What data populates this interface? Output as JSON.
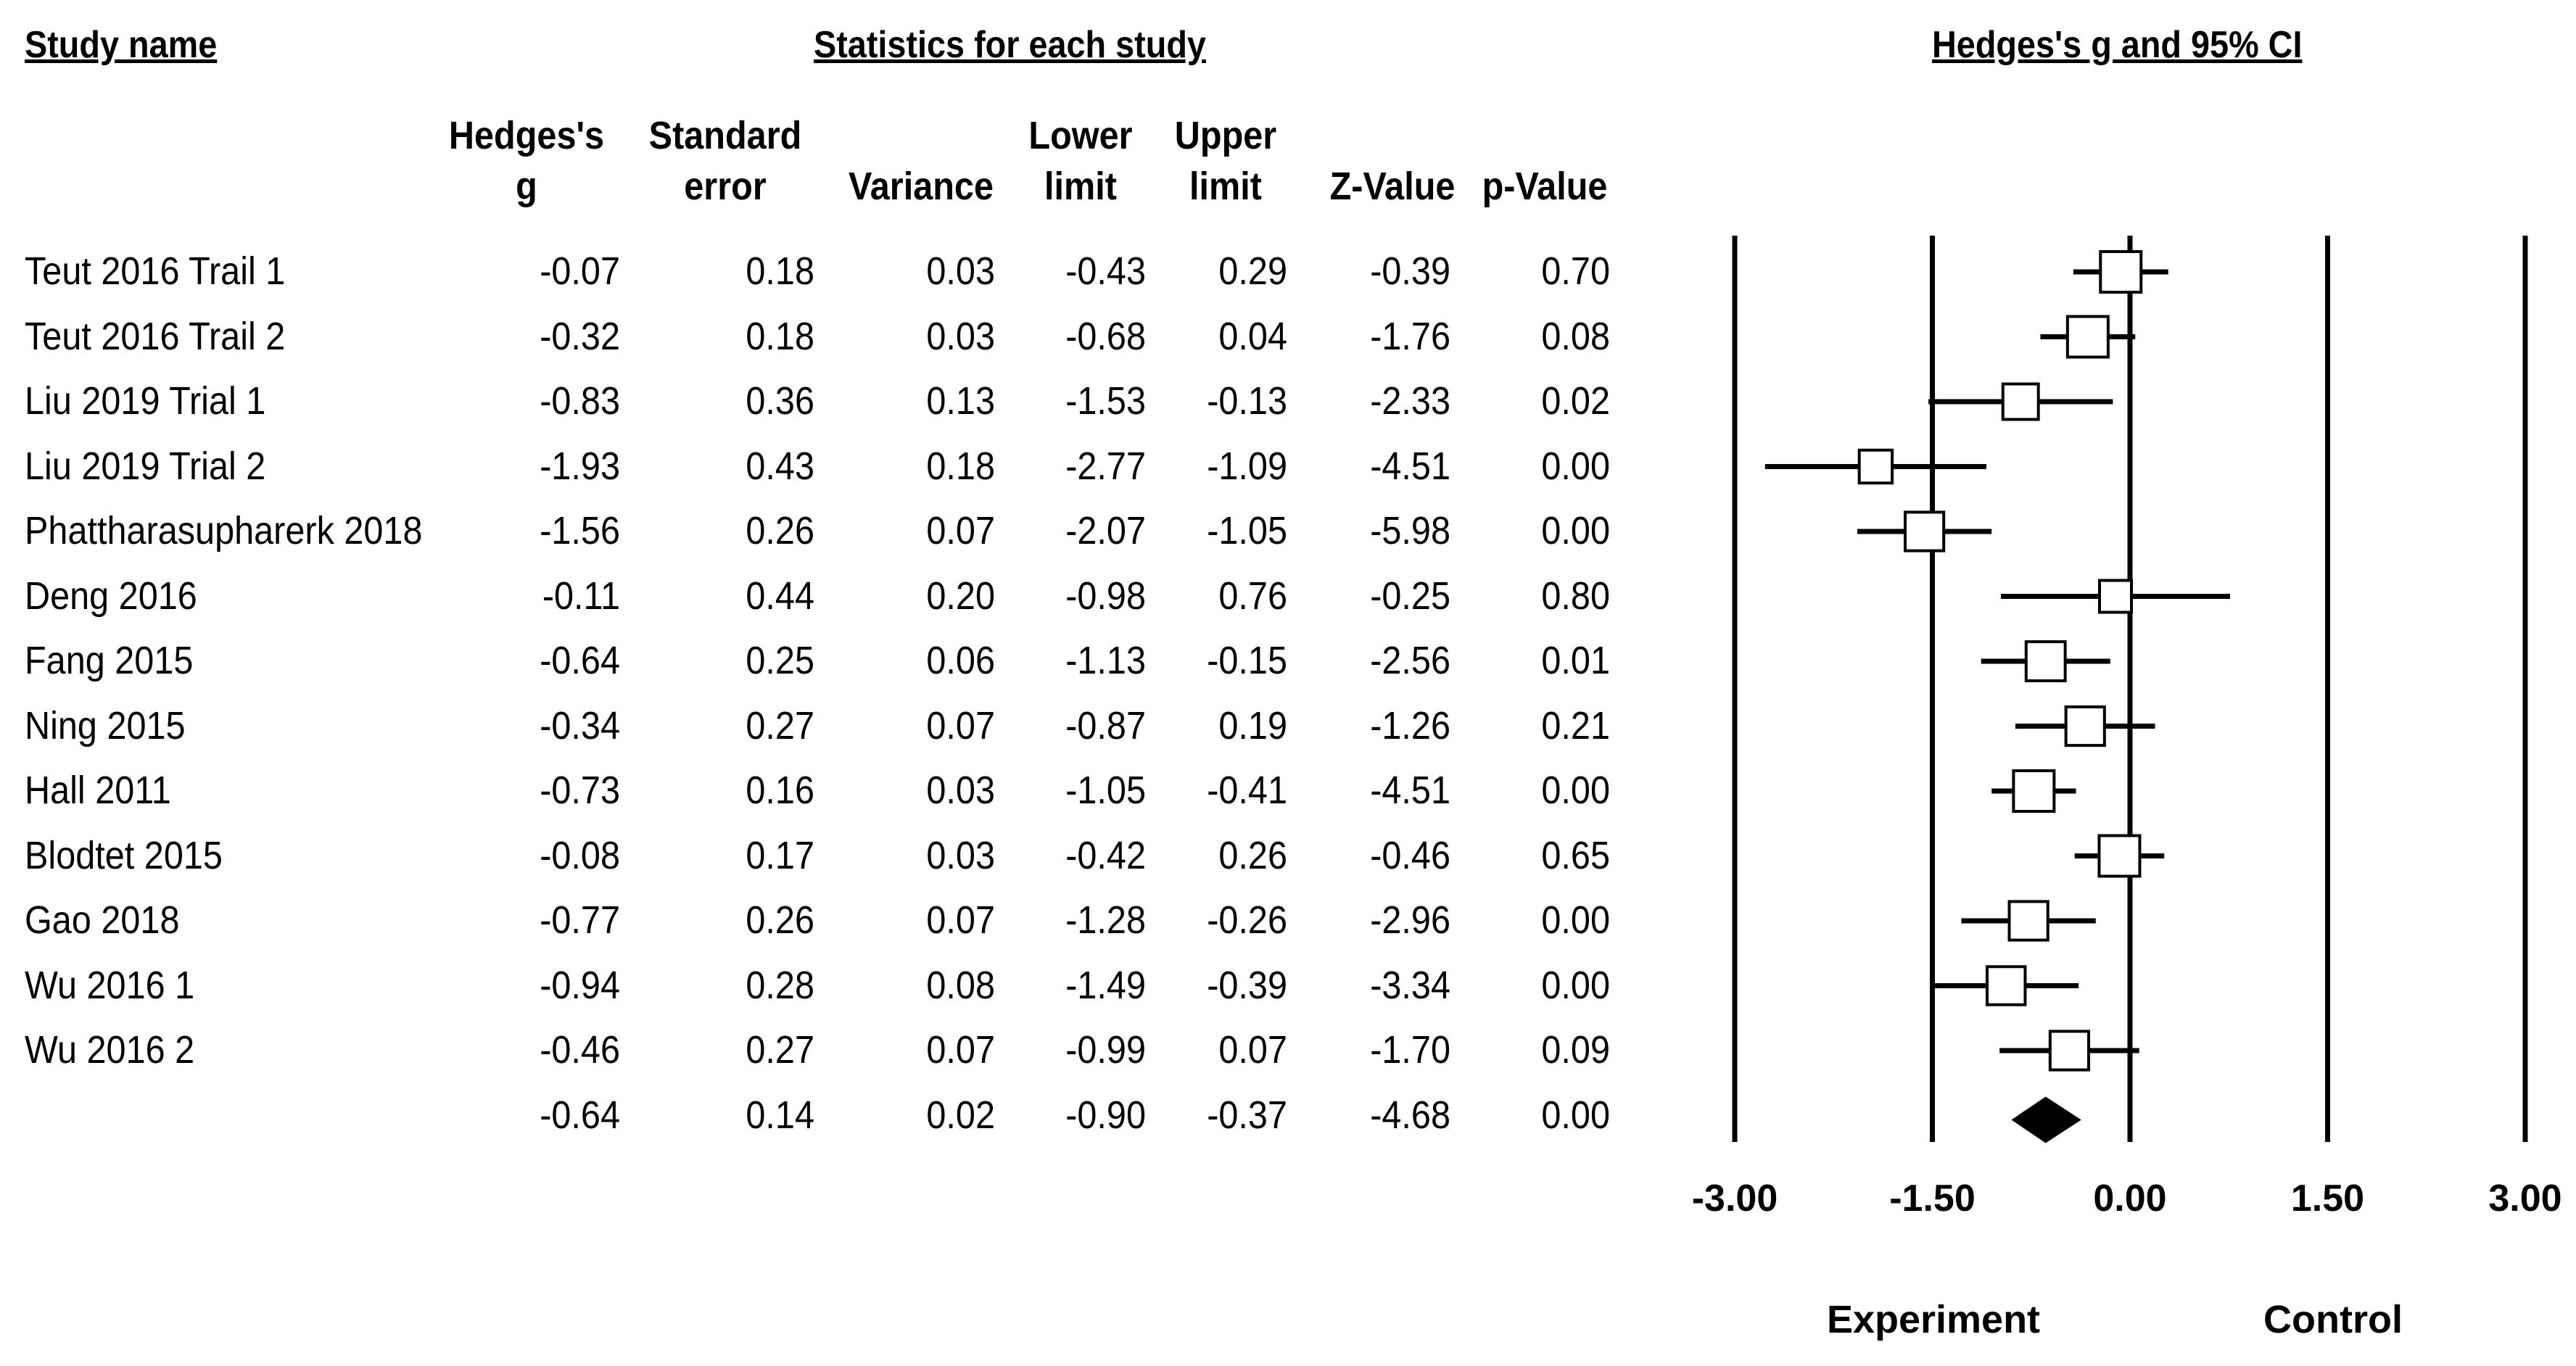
{
  "headers": {
    "study_name": "Study name",
    "statistics": "Statistics for each study",
    "plot_title": "Hedges's g and 95% CI"
  },
  "columns": [
    {
      "line1": "Hedges's",
      "line2": "g"
    },
    {
      "line1": "Standard",
      "line2": "error"
    },
    {
      "line1": "",
      "line2": "Variance"
    },
    {
      "line1": "Lower",
      "line2": "limit"
    },
    {
      "line1": "Upper",
      "line2": "limit"
    },
    {
      "line1": "",
      "line2": "Z-Value"
    },
    {
      "line1": "",
      "line2": "p-Value"
    }
  ],
  "rows": [
    {
      "name": "Teut 2016 Trail 1",
      "g": "-0.07",
      "se": "0.18",
      "var": "0.03",
      "lower": "-0.43",
      "upper": "0.29",
      "z": "-0.39",
      "p": "0.70"
    },
    {
      "name": "Teut 2016 Trail 2",
      "g": "-0.32",
      "se": "0.18",
      "var": "0.03",
      "lower": "-0.68",
      "upper": "0.04",
      "z": "-1.76",
      "p": "0.08"
    },
    {
      "name": "Liu 2019 Trial 1",
      "g": "-0.83",
      "se": "0.36",
      "var": "0.13",
      "lower": "-1.53",
      "upper": "-0.13",
      "z": "-2.33",
      "p": "0.02"
    },
    {
      "name": "Liu 2019 Trial 2",
      "g": "-1.93",
      "se": "0.43",
      "var": "0.18",
      "lower": "-2.77",
      "upper": "-1.09",
      "z": "-4.51",
      "p": "0.00"
    },
    {
      "name": "Phattharasupharerk 2018",
      "g": "-1.56",
      "se": "0.26",
      "var": "0.07",
      "lower": "-2.07",
      "upper": "-1.05",
      "z": "-5.98",
      "p": "0.00"
    },
    {
      "name": "Deng 2016",
      "g": "-0.11",
      "se": "0.44",
      "var": "0.20",
      "lower": "-0.98",
      "upper": "0.76",
      "z": "-0.25",
      "p": "0.80"
    },
    {
      "name": "Fang 2015",
      "g": "-0.64",
      "se": "0.25",
      "var": "0.06",
      "lower": "-1.13",
      "upper": "-0.15",
      "z": "-2.56",
      "p": "0.01"
    },
    {
      "name": "Ning 2015",
      "g": "-0.34",
      "se": "0.27",
      "var": "0.07",
      "lower": "-0.87",
      "upper": "0.19",
      "z": "-1.26",
      "p": "0.21"
    },
    {
      "name": "Hall 2011",
      "g": "-0.73",
      "se": "0.16",
      "var": "0.03",
      "lower": "-1.05",
      "upper": "-0.41",
      "z": "-4.51",
      "p": "0.00"
    },
    {
      "name": "Blodtet 2015",
      "g": "-0.08",
      "se": "0.17",
      "var": "0.03",
      "lower": "-0.42",
      "upper": "0.26",
      "z": "-0.46",
      "p": "0.65"
    },
    {
      "name": "Gao 2018",
      "g": "-0.77",
      "se": "0.26",
      "var": "0.07",
      "lower": "-1.28",
      "upper": "-0.26",
      "z": "-2.96",
      "p": "0.00"
    },
    {
      "name": "Wu 2016 1",
      "g": "-0.94",
      "se": "0.28",
      "var": "0.08",
      "lower": "-1.49",
      "upper": "-0.39",
      "z": "-3.34",
      "p": "0.00"
    },
    {
      "name": "Wu 2016 2",
      "g": "-0.46",
      "se": "0.27",
      "var": "0.07",
      "lower": "-0.99",
      "upper": "0.07",
      "z": "-1.70",
      "p": "0.09"
    }
  ],
  "summary": {
    "g": "-0.64",
    "se": "0.14",
    "var": "0.02",
    "lower": "-0.90",
    "upper": "-0.37",
    "z": "-4.68",
    "p": "0.00"
  },
  "chart_data": {
    "type": "forest",
    "title": "Hedges's g and 95% CI",
    "xlim": [
      -3,
      3
    ],
    "ticks": [
      -3,
      -1.5,
      0,
      1.5,
      3
    ],
    "tick_labels": [
      "-3.00",
      "-1.50",
      "0.00",
      "1.50",
      "3.00"
    ],
    "left_label": "Experiment",
    "right_label": "Control",
    "studies": [
      {
        "g": -0.07,
        "lower": -0.43,
        "upper": 0.29,
        "weight": 0.03
      },
      {
        "g": -0.32,
        "lower": -0.68,
        "upper": 0.04,
        "weight": 0.03
      },
      {
        "g": -0.83,
        "lower": -1.53,
        "upper": -0.13,
        "weight": 0.13
      },
      {
        "g": -1.93,
        "lower": -2.77,
        "upper": -1.09,
        "weight": 0.18
      },
      {
        "g": -1.56,
        "lower": -2.07,
        "upper": -1.05,
        "weight": 0.07
      },
      {
        "g": -0.11,
        "lower": -0.98,
        "upper": 0.76,
        "weight": 0.2
      },
      {
        "g": -0.64,
        "lower": -1.13,
        "upper": -0.15,
        "weight": 0.06
      },
      {
        "g": -0.34,
        "lower": -0.87,
        "upper": 0.19,
        "weight": 0.07
      },
      {
        "g": -0.73,
        "lower": -1.05,
        "upper": -0.41,
        "weight": 0.03
      },
      {
        "g": -0.08,
        "lower": -0.42,
        "upper": 0.26,
        "weight": 0.03
      },
      {
        "g": -0.77,
        "lower": -1.28,
        "upper": -0.26,
        "weight": 0.07
      },
      {
        "g": -0.94,
        "lower": -1.49,
        "upper": -0.39,
        "weight": 0.08
      },
      {
        "g": -0.46,
        "lower": -0.99,
        "upper": 0.07,
        "weight": 0.07
      }
    ],
    "summary": {
      "g": -0.64,
      "lower": -0.9,
      "upper": -0.37
    }
  }
}
